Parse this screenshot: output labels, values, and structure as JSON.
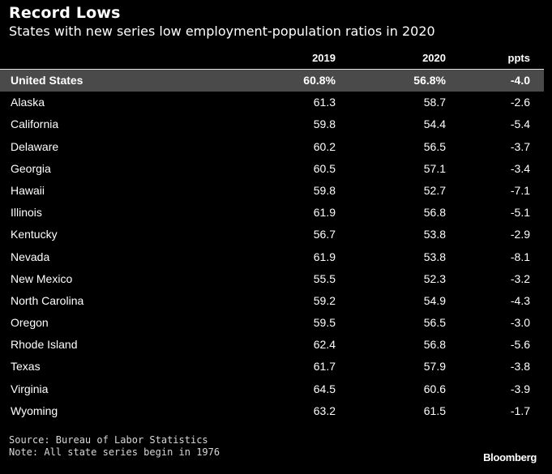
{
  "chart_data": {
    "type": "table",
    "title": "Record Lows",
    "subtitle": "States with new series low employment-population ratios in 2020",
    "columns": [
      "",
      "2019",
      "2020",
      "ppts"
    ],
    "highlight_row": {
      "state": "United States",
      "y2019": "60.8%",
      "y2020": "56.8%",
      "ppts": "-4.0"
    },
    "rows": [
      {
        "state": "Alaska",
        "y2019": "61.3",
        "y2020": "58.7",
        "ppts": "-2.6"
      },
      {
        "state": "California",
        "y2019": "59.8",
        "y2020": "54.4",
        "ppts": "-5.4"
      },
      {
        "state": "Delaware",
        "y2019": "60.2",
        "y2020": "56.5",
        "ppts": "-3.7"
      },
      {
        "state": "Georgia",
        "y2019": "60.5",
        "y2020": "57.1",
        "ppts": "-3.4"
      },
      {
        "state": "Hawaii",
        "y2019": "59.8",
        "y2020": "52.7",
        "ppts": "-7.1"
      },
      {
        "state": "Illinois",
        "y2019": "61.9",
        "y2020": "56.8",
        "ppts": "-5.1"
      },
      {
        "state": "Kentucky",
        "y2019": "56.7",
        "y2020": "53.8",
        "ppts": "-2.9"
      },
      {
        "state": "Nevada",
        "y2019": "61.9",
        "y2020": "53.8",
        "ppts": "-8.1"
      },
      {
        "state": "New Mexico",
        "y2019": "55.5",
        "y2020": "52.3",
        "ppts": "-3.2"
      },
      {
        "state": "North Carolina",
        "y2019": "59.2",
        "y2020": "54.9",
        "ppts": "-4.3"
      },
      {
        "state": "Oregon",
        "y2019": "59.5",
        "y2020": "56.5",
        "ppts": "-3.0"
      },
      {
        "state": "Rhode Island",
        "y2019": "62.4",
        "y2020": "56.8",
        "ppts": "-5.6"
      },
      {
        "state": "Texas",
        "y2019": "61.7",
        "y2020": "57.9",
        "ppts": "-3.8"
      },
      {
        "state": "Virginia",
        "y2019": "64.5",
        "y2020": "60.6",
        "ppts": "-3.9"
      },
      {
        "state": "Wyoming",
        "y2019": "63.2",
        "y2020": "61.5",
        "ppts": "-1.7"
      }
    ],
    "source": "Source: Bureau of Labor Statistics",
    "note": "Note: All state series begin in 1976",
    "brand": "Bloomberg"
  },
  "colors": {
    "background": "#000000",
    "text": "#ffffff",
    "highlight_row": "#4a4a4a",
    "header_rule": "#e6e6e6",
    "footer_text": "#d8d8d8"
  }
}
